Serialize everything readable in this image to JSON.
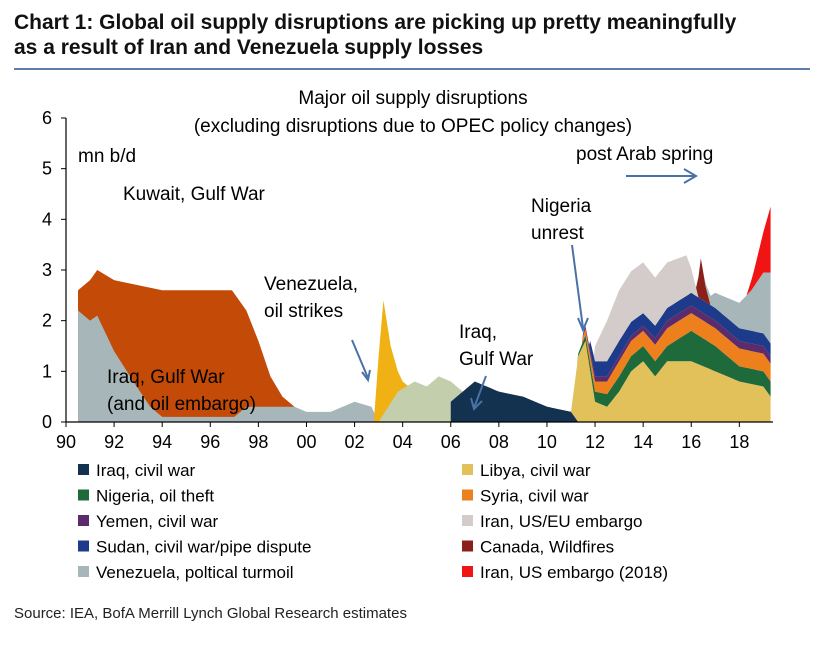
{
  "header": {
    "title_line1": "Chart 1: Global oil supply disruptions are picking up pretty meaningfully",
    "title_line2": "as a result of Iran and Venezuela supply losses"
  },
  "source": "Source: IEA, BofA Merrill Lynch Global Research estimates",
  "chart_data": {
    "type": "area",
    "title": "Major oil supply disruptions",
    "subtitle": "(excluding disruptions due to OPEC policy changes)",
    "ylabel": "mn b/d",
    "xlim": [
      1990,
      2019.4
    ],
    "ylim": [
      0,
      6
    ],
    "x_tick_labels": [
      "90",
      "92",
      "94",
      "96",
      "98",
      "00",
      "02",
      "04",
      "06",
      "08",
      "10",
      "12",
      "14",
      "16",
      "18"
    ],
    "y_tick_labels": [
      "0",
      "1",
      "2",
      "3",
      "4",
      "5",
      "6"
    ],
    "legend_position": "bottom",
    "grid": false,
    "annotations": [
      {
        "text": "Kuwait, Gulf War"
      },
      {
        "text": "Iraq, Gulf War"
      },
      {
        "text": "(and oil embargo)"
      },
      {
        "text": "Venezuela,"
      },
      {
        "text": "oil strikes"
      },
      {
        "text": "Iraq,"
      },
      {
        "text": "Gulf War"
      },
      {
        "text": "Nigeria"
      },
      {
        "text": "unrest"
      },
      {
        "text": "post Arab spring"
      }
    ],
    "series": [
      {
        "name": "Iraq, civil war",
        "color": "#13324f",
        "x": [
          2006.0,
          2007.0,
          2008.0,
          2009.0,
          2010.0,
          2011.0,
          2011.3
        ],
        "y": [
          0.4,
          0.8,
          0.6,
          0.5,
          0.3,
          0.2,
          0.0
        ]
      },
      {
        "name": "Libya, civil war",
        "color": "#e2c15a",
        "x": [
          2011.0,
          2011.3,
          2011.6,
          2012.0,
          2012.5,
          2013.0,
          2013.5,
          2014.0,
          2014.5,
          2015.0,
          2016.0,
          2017.0,
          2018.0,
          2019.0,
          2019.3
        ],
        "y": [
          0.0,
          1.3,
          1.6,
          0.4,
          0.3,
          0.6,
          1.0,
          1.2,
          0.9,
          1.2,
          1.2,
          1.0,
          0.8,
          0.7,
          0.5
        ]
      },
      {
        "name": "Nigeria, oil theft",
        "color": "#1f6a3a",
        "x": [
          2011.3,
          2012.0,
          2013.0,
          2014.0,
          2015.0,
          2016.0,
          2017.0,
          2018.0,
          2019.3
        ],
        "y": [
          0.05,
          0.2,
          0.3,
          0.3,
          0.3,
          0.6,
          0.5,
          0.3,
          0.3
        ]
      },
      {
        "name": "Syria, civil war",
        "color": "#ee7f1d",
        "x": [
          2011.5,
          2012.0,
          2013.0,
          2014.0,
          2015.0,
          2016.0,
          2017.0,
          2018.0,
          2019.3
        ],
        "y": [
          0.1,
          0.2,
          0.3,
          0.3,
          0.35,
          0.35,
          0.35,
          0.35,
          0.35
        ]
      },
      {
        "name": "Yemen, civil war",
        "color": "#5b2b6b",
        "x": [
          2011.5,
          2012.0,
          2013.0,
          2014.0,
          2015.0,
          2016.0,
          2017.0,
          2018.0,
          2019.3
        ],
        "y": [
          0.05,
          0.1,
          0.1,
          0.1,
          0.15,
          0.15,
          0.15,
          0.15,
          0.15
        ]
      },
      {
        "name": "Sudan, civil war/pipe dispute",
        "color": "#1d3b8a",
        "x": [
          2011.8,
          2012.0,
          2013.0,
          2014.0,
          2015.0,
          2016.0,
          2017.0,
          2018.0,
          2019.3
        ],
        "y": [
          0.2,
          0.3,
          0.3,
          0.25,
          0.25,
          0.25,
          0.25,
          0.25,
          0.25
        ]
      },
      {
        "name": "Iran, US/EU embargo",
        "color": "#d3ccca",
        "x": [
          2012.0,
          2012.5,
          2013.0,
          2014.0,
          2015.0,
          2015.8,
          2016.3,
          2017.0,
          2018.0,
          2019.3
        ],
        "y": [
          0.3,
          0.8,
          1.0,
          1.0,
          0.9,
          0.8,
          0.0,
          0.0,
          0.0,
          0.0
        ]
      },
      {
        "name": "Canada, Wildfires",
        "color": "#8b1f1a",
        "x": [
          2016.2,
          2016.4,
          2016.6,
          2016.8
        ],
        "y": [
          0.0,
          0.8,
          0.3,
          0.0
        ]
      },
      {
        "name": "Venezuela, poltical turmoil",
        "color": "#a6b6b9",
        "x": [
          2016.5,
          2017.0,
          2018.0,
          2018.5,
          2019.0,
          2019.3
        ],
        "y": [
          0.0,
          0.3,
          0.5,
          0.8,
          1.2,
          1.4
        ]
      },
      {
        "name": "Iran, US embargo (2018)",
        "color": "#f01414",
        "x": [
          2018.3,
          2018.6,
          2019.0,
          2019.3
        ],
        "y": [
          0.0,
          0.3,
          0.8,
          1.3
        ]
      }
    ],
    "historical": [
      {
        "color": "#c34a07",
        "x": [
          1990.5,
          1991.0,
          1991.3,
          1992.0,
          1994.0,
          1996.0,
          1996.9,
          1997.5,
          1998.0,
          1998.5,
          1999.0,
          1999.5
        ],
        "y": [
          2.6,
          2.8,
          3.0,
          2.8,
          2.6,
          2.6,
          2.6,
          2.2,
          1.6,
          0.9,
          0.5,
          0.3
        ]
      },
      {
        "color": "#a6b6b9",
        "x": [
          1990.5,
          1991.0,
          1991.3,
          1992.0,
          1992.8,
          1993.5,
          1994.0,
          1995.0,
          1996.0,
          1997.0,
          1997.5,
          1998.0,
          1998.5,
          1999.0,
          1999.5,
          2000.0,
          2001.0,
          2002.0,
          2002.7,
          2003.0
        ],
        "y": [
          2.2,
          2.0,
          2.1,
          1.4,
          0.8,
          0.3,
          0.1,
          0.1,
          0.1,
          0.1,
          0.3,
          0.3,
          0.3,
          0.3,
          0.3,
          0.2,
          0.2,
          0.4,
          0.3,
          0.0
        ]
      },
      {
        "color": "#efb114",
        "x": [
          2002.8,
          2003.0,
          2003.2,
          2003.5,
          2003.8,
          2004.0,
          2004.5,
          2005.0,
          2005.5,
          2006.0
        ],
        "y": [
          0.0,
          1.3,
          2.4,
          1.5,
          1.0,
          0.8,
          0.6,
          0.4,
          0.2,
          0.1
        ]
      },
      {
        "color": "#c3ceac",
        "x": [
          2003.0,
          2003.8,
          2004.5,
          2005.0,
          2005.5,
          2006.0,
          2007.0,
          2008.0,
          2009.0
        ],
        "y": [
          0.0,
          0.6,
          0.8,
          0.7,
          0.9,
          0.8,
          0.4,
          0.2,
          0.0
        ]
      },
      {
        "color": "#13324f",
        "x": [
          2006.0,
          2006.5,
          2007.0,
          2007.5,
          2008.0,
          2008.5,
          2009.0,
          2010.0,
          2011.0,
          2011.3
        ],
        "y": [
          0.0,
          0.4,
          0.8,
          0.6,
          0.6,
          0.5,
          0.5,
          0.3,
          0.2,
          0.0
        ]
      }
    ]
  },
  "legend": {
    "left": [
      {
        "label": "Iraq, civil war",
        "color": "#13324f"
      },
      {
        "label": "Nigeria, oil theft",
        "color": "#1f6a3a"
      },
      {
        "label": "Yemen, civil war",
        "color": "#5b2b6b"
      },
      {
        "label": "Sudan, civil war/pipe dispute",
        "color": "#1d3b8a"
      },
      {
        "label": "Venezuela, poltical turmoil",
        "color": "#a6b6b9"
      }
    ],
    "right": [
      {
        "label": "Libya, civil war",
        "color": "#e2c15a"
      },
      {
        "label": "Syria, civil war",
        "color": "#ee7f1d"
      },
      {
        "label": "Iran, US/EU embargo",
        "color": "#d3ccca"
      },
      {
        "label": "Canada, Wildfires",
        "color": "#8b1f1a"
      },
      {
        "label": "Iran, US embargo (2018)",
        "color": "#f01414"
      }
    ]
  }
}
